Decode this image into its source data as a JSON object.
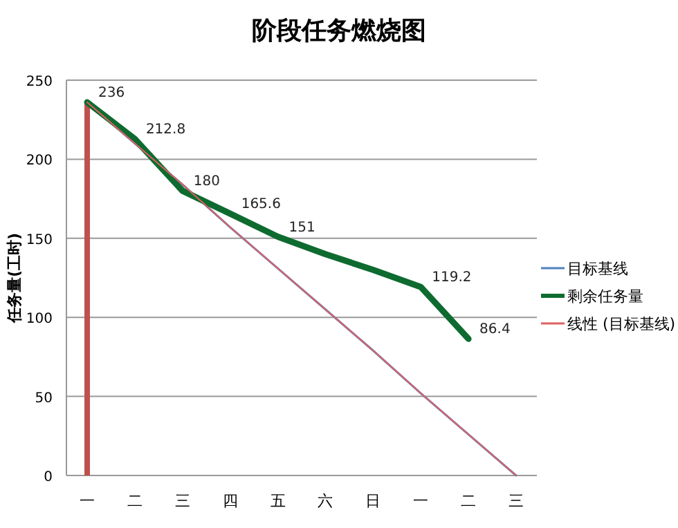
{
  "chart_data": {
    "type": "line",
    "title": "阶段任务燃烧图",
    "ylabel": "任务量(工时)",
    "categories": [
      "一",
      "二",
      "三",
      "四",
      "五",
      "六",
      "日",
      "一",
      "二",
      "三"
    ],
    "series": [
      {
        "type": "bar",
        "color": "#c0504d",
        "values": [
          236,
          null,
          null,
          null,
          null,
          null,
          null,
          null,
          null,
          null
        ]
      },
      {
        "name": "目标基线",
        "color": "#4f81bd",
        "values": [
          236,
          210,
          184,
          157,
          131,
          105,
          79,
          52,
          26,
          0
        ]
      },
      {
        "name": "剩余任务量",
        "color": "#0e6b30",
        "values": [
          236,
          212.8,
          180,
          165.6,
          151,
          140,
          130,
          119.2,
          86.4,
          null
        ],
        "value_labels": [
          "236",
          "212.8",
          "180",
          "165.6",
          "151",
          null,
          null,
          "119.2",
          "86.4",
          null
        ]
      },
      {
        "name": "线性 (目标基线)",
        "color": "#e06060",
        "values": [
          236,
          210,
          184,
          157,
          131,
          105,
          79,
          52,
          26,
          0
        ]
      }
    ],
    "ylim": [
      0,
      250
    ],
    "yticks": [
      0,
      50,
      100,
      150,
      200,
      250
    ],
    "grid": "y",
    "legend": "right"
  }
}
